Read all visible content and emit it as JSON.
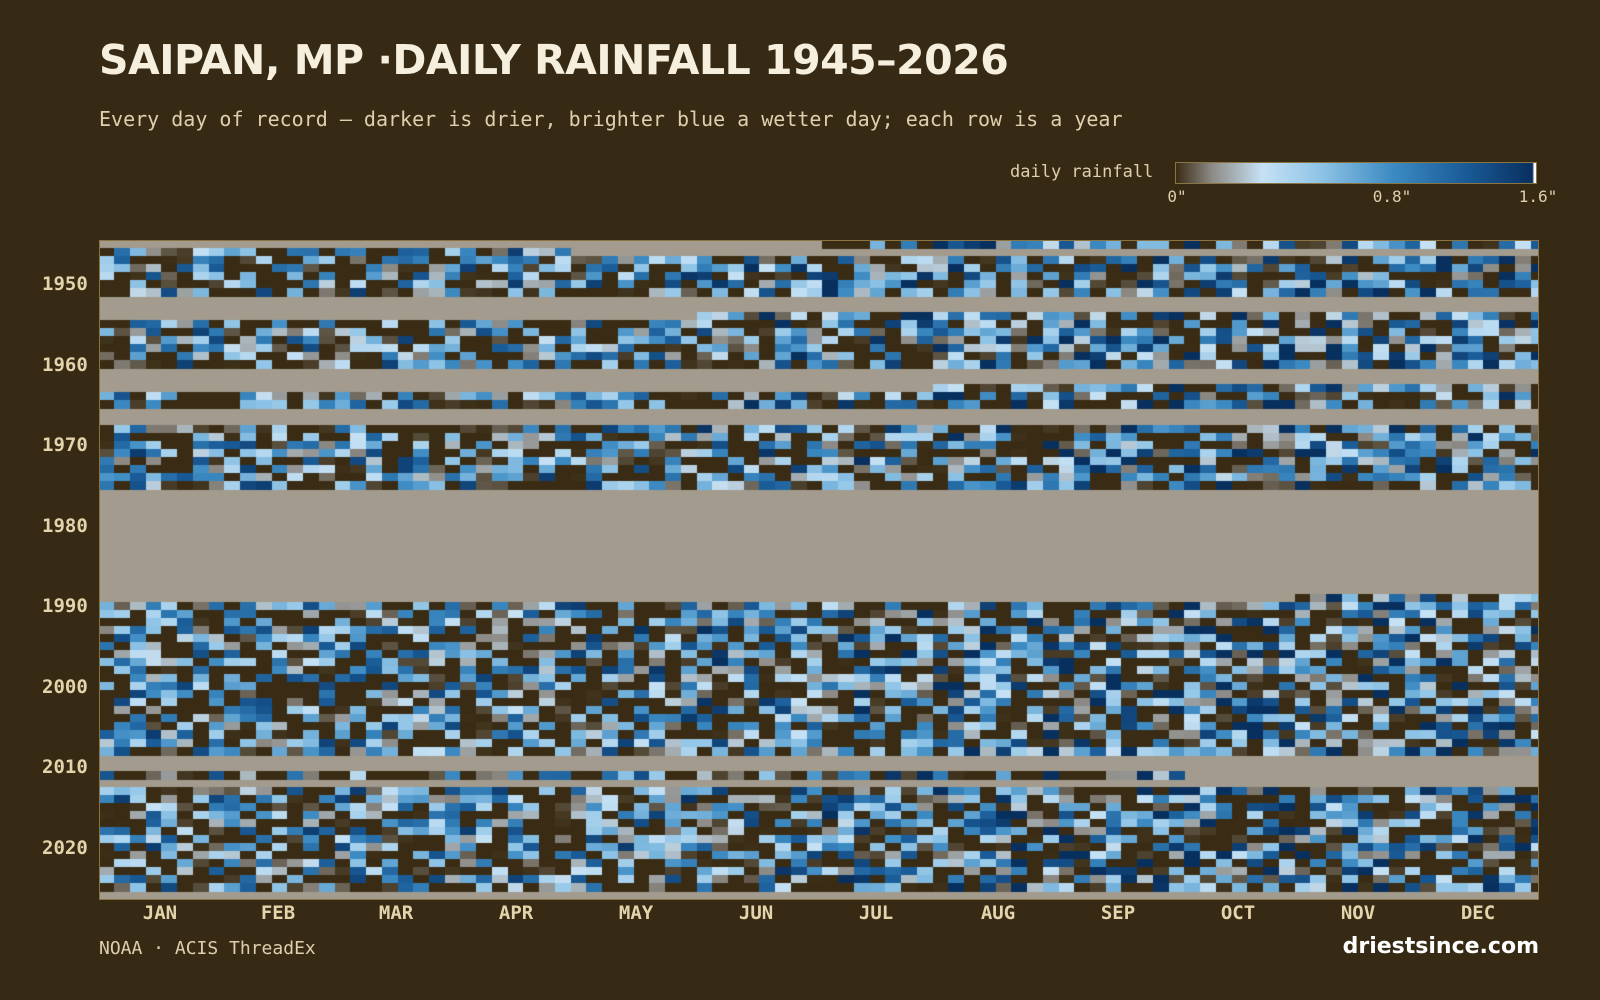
{
  "header": {
    "title": "SAIPAN, MP ·DAILY RAINFALL 1945–2026",
    "subtitle": "Every day of record — darker is drier, brighter blue a wetter day; each row is a year"
  },
  "legend": {
    "label": "daily rainfall",
    "ticks": [
      "0\"",
      "0.8\"",
      "1.6\""
    ],
    "max_value": 1.6
  },
  "footer": {
    "source": "NOAA · ACIS ThreadEx",
    "brand": "driestsince.com"
  },
  "colors": {
    "background": "#372a14",
    "missing": "#a39b8d",
    "dry": "#3a2c14",
    "wet_light": "#c6e1f4",
    "wet_mid": "#3d8bc3",
    "wet_max": "#08305f"
  },
  "chart_data": {
    "type": "heatmap",
    "title": "SAIPAN, MP ·DAILY RAINFALL 1945–2026",
    "x_axis": "day of year",
    "y_axis": "year",
    "year_range": [
      1945,
      2026
    ],
    "value_unit": "inches",
    "value_range": [
      0,
      1.6
    ],
    "year_ticks": [
      "1950",
      "1960",
      "1970",
      "1980",
      "1990",
      "2000",
      "2010",
      "2020"
    ],
    "month_ticks": [
      "JAN",
      "FEB",
      "MAR",
      "APR",
      "MAY",
      "JUN",
      "JUL",
      "AUG",
      "SEP",
      "OCT",
      "NOV",
      "DEC"
    ],
    "missing_periods": [
      {
        "from": "1945-01-01",
        "to": "1945-07-01"
      },
      {
        "from": "1946-05-01",
        "to": "1946-12-31"
      },
      {
        "from": "1952-01-01",
        "to": "1953-12-31"
      },
      {
        "from": "1954-01-01",
        "to": "1954-05-31"
      },
      {
        "from": "1961-01-01",
        "to": "1963-07-31"
      },
      {
        "from": "1966-01-01",
        "to": "1967-12-31"
      },
      {
        "from": "1976-01-01",
        "to": "1976-12-31"
      },
      {
        "from": "1977-01-01",
        "to": "1989-10-31"
      },
      {
        "from": "2009-01-01",
        "to": "2010-12-31"
      },
      {
        "from": "2011-10-01",
        "to": "2012-12-31"
      },
      {
        "from": "2026-01-01",
        "to": "2026-12-31"
      }
    ],
    "grid": false
  }
}
